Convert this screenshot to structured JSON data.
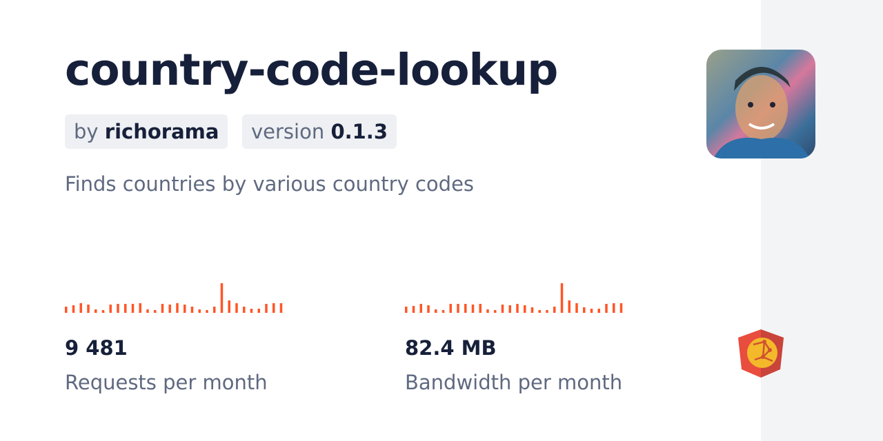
{
  "package": {
    "name": "country-code-lookup",
    "author_prefix": "by",
    "author": "richorama",
    "version_prefix": "version",
    "version": "0.1.3",
    "description": "Finds countries by various country codes"
  },
  "stats": [
    {
      "value": "9 481",
      "label": "Requests per month"
    },
    {
      "value": "82.4 MB",
      "label": "Bandwidth per month"
    }
  ],
  "colors": {
    "accent": "#ff5627",
    "text": "#17203a",
    "muted": "#5f6980",
    "sidebar": "#f3f4f6"
  },
  "chart_data": [
    {
      "type": "bar",
      "values": [
        9,
        11,
        14,
        12,
        5,
        4,
        12,
        13,
        13,
        13,
        14,
        5,
        4,
        13,
        12,
        14,
        12,
        9,
        5,
        4,
        9,
        43,
        18,
        14,
        9,
        6,
        6,
        13,
        14,
        14
      ]
    },
    {
      "type": "bar",
      "values": [
        9,
        10,
        13,
        11,
        5,
        4,
        13,
        13,
        13,
        12,
        13,
        5,
        4,
        12,
        11,
        13,
        11,
        8,
        4,
        4,
        9,
        43,
        18,
        14,
        8,
        6,
        6,
        13,
        14,
        14
      ]
    }
  ],
  "icons": {
    "avatar": "author-avatar",
    "logo": "jsdelivr-logo"
  }
}
